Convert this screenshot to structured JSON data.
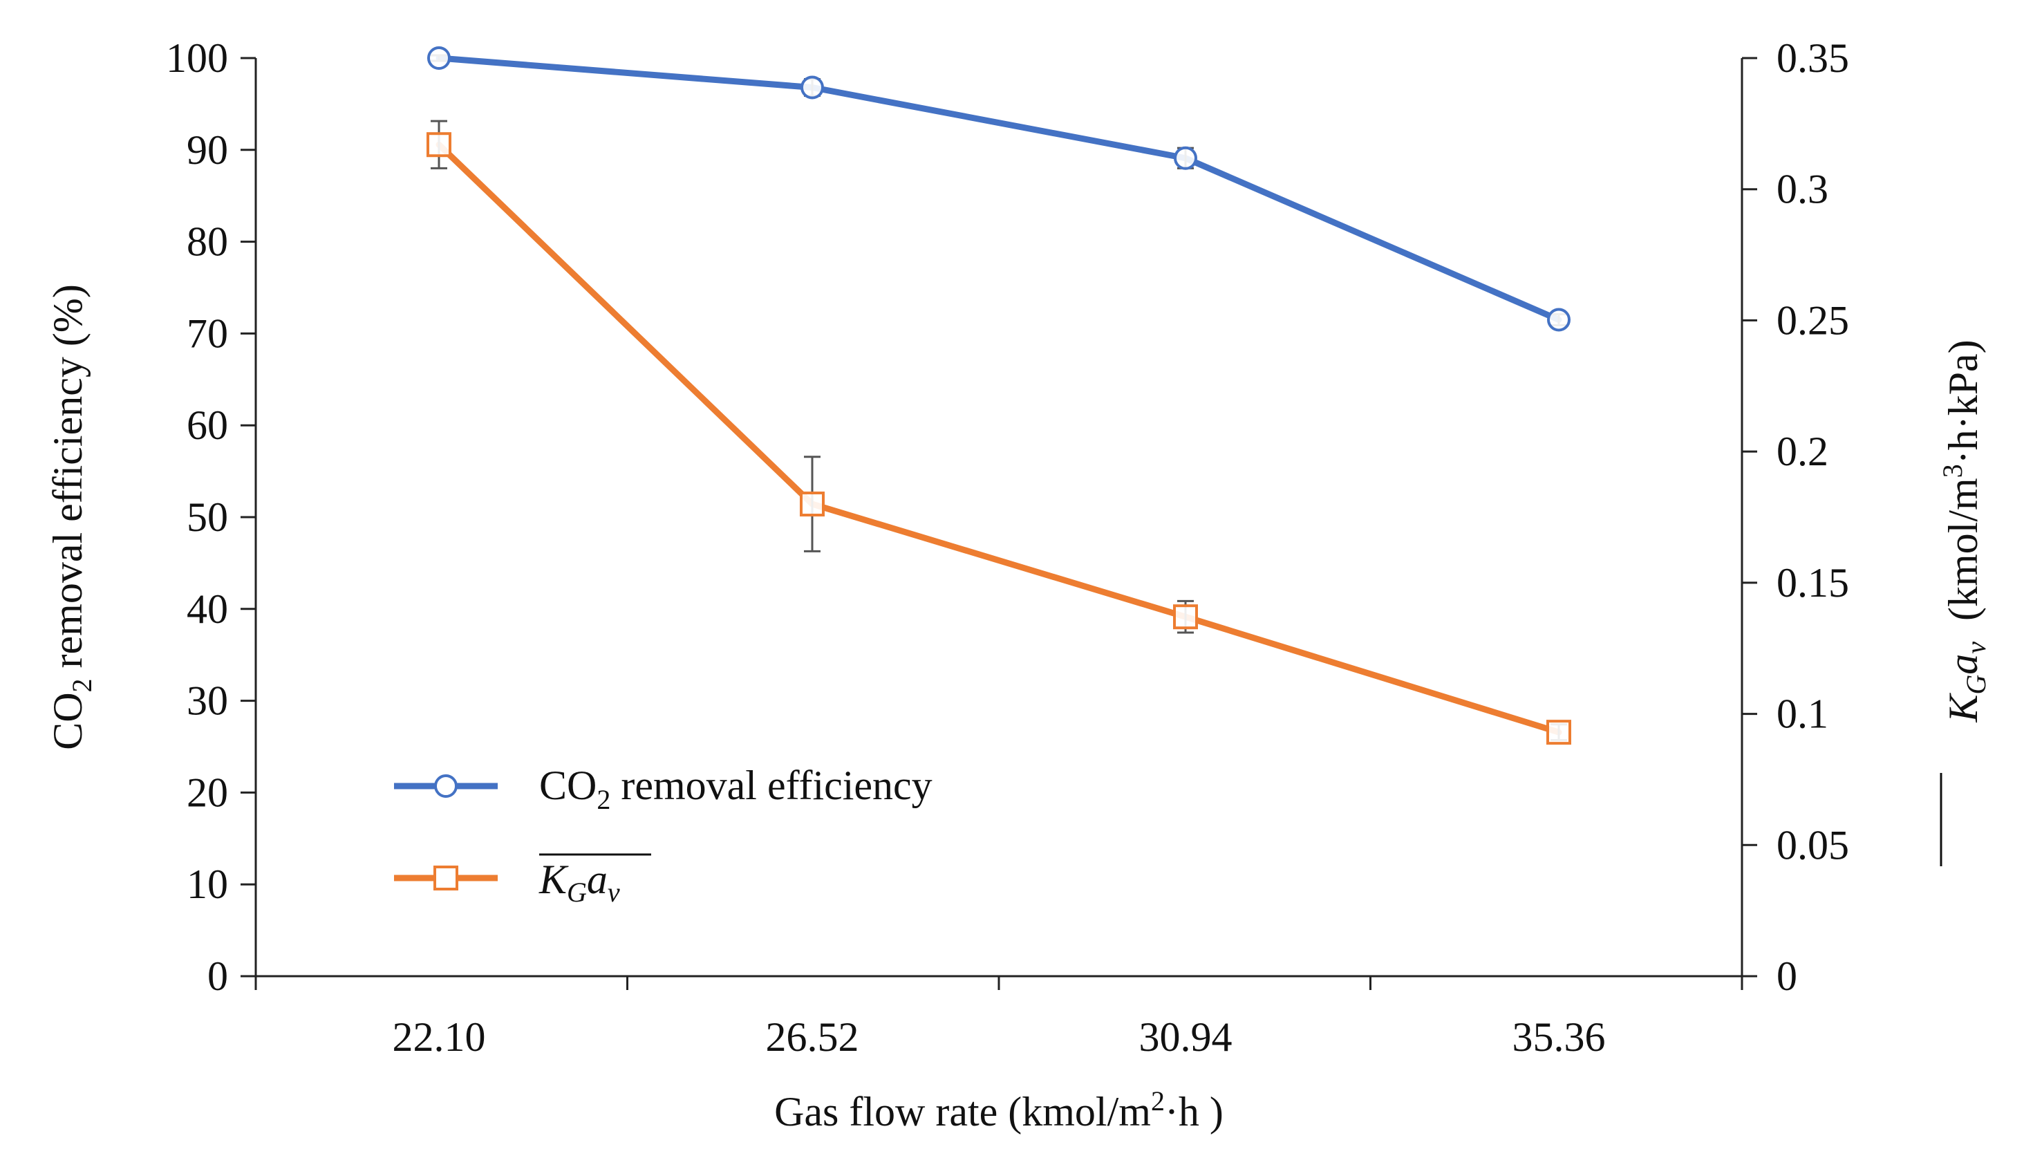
{
  "chart_data": {
    "type": "line",
    "title": "",
    "categories": [
      "22.10",
      "26.52",
      "30.94",
      "35.36"
    ],
    "xlabel": "Gas flow rate (kmol/m2·h )",
    "xlabel_parts": {
      "main": "Gas flow rate (kmol/m",
      "sup": "2",
      "tail": "·h )"
    },
    "ylabel_left": "CO2 removal efficiency (%)",
    "ylabel_left_parts": {
      "main": "CO",
      "sub": "2",
      "tail": " removal efficiency (%)"
    },
    "ylabel_right": "KGav (kmol/m3·h·kPa)",
    "ylabel_right_parts": {
      "k": "K",
      "ksub": "G",
      "a": "a",
      "asub": "v",
      "units_pre": "(kmol/m",
      "units_sup": "3",
      "units_post": "·h·kPa)"
    },
    "ylim_left": [
      0,
      100
    ],
    "yticks_left": [
      0,
      10,
      20,
      30,
      40,
      50,
      60,
      70,
      80,
      90,
      100
    ],
    "yticklabels_left": [
      "0",
      "10",
      "20",
      "30",
      "40",
      "50",
      "60",
      "70",
      "80",
      "90",
      "100"
    ],
    "ylim_right": [
      0,
      0.35
    ],
    "yticks_right": [
      0,
      0.05,
      0.1,
      0.15,
      0.2,
      0.25,
      0.3,
      0.35
    ],
    "yticklabels_right": [
      "0",
      "0.05",
      "0.1",
      "0.15",
      "0.2",
      "0.25",
      "0.3",
      "0.35"
    ],
    "legend_position": "lower-left",
    "series": [
      {
        "name": "CO2 removal efficiency",
        "legend_parts": {
          "main": "CO",
          "sub": "2",
          "tail": " removal efficiency"
        },
        "axis": "left",
        "marker": "circle",
        "color": "#4472C4",
        "values": [
          100,
          96.8,
          89.1,
          71.5
        ],
        "errors": [
          0.3,
          0.9,
          1.1,
          0.6
        ]
      },
      {
        "name": "KGav",
        "legend_parts": {
          "k": "K",
          "ksub": "G",
          "a": "a",
          "asub": "v"
        },
        "axis": "right",
        "marker": "square",
        "color": "#ED7D31",
        "values": [
          0.317,
          0.18,
          0.137,
          0.093
        ],
        "errors": [
          0.009,
          0.018,
          0.006,
          0.003
        ]
      }
    ]
  }
}
